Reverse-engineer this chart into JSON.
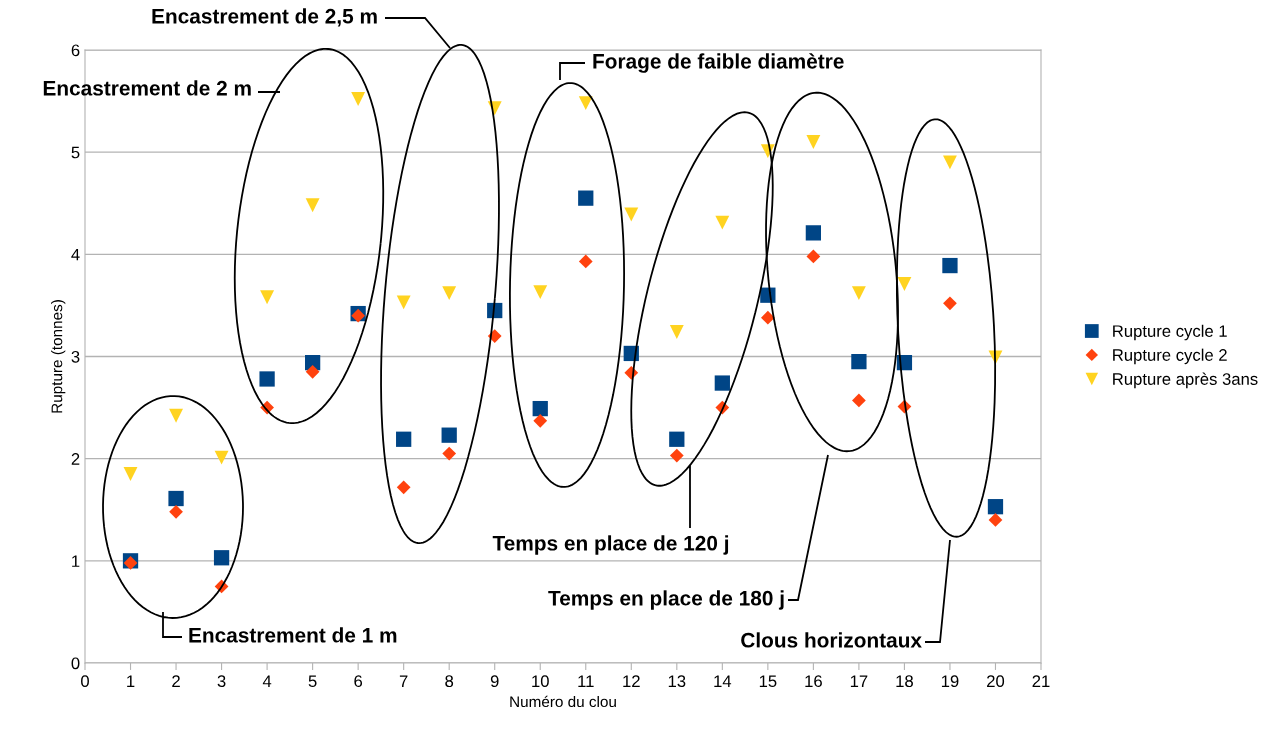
{
  "chart_data": {
    "type": "scatter",
    "xlabel": "Numéro du clou",
    "ylabel": "Rupture (tonnes)",
    "x": [
      1,
      2,
      3,
      4,
      5,
      6,
      7,
      8,
      9,
      10,
      11,
      12,
      13,
      14,
      15,
      16,
      17,
      18,
      19,
      20
    ],
    "series": [
      {
        "name": "Rupture cycle 1",
        "color": "#004586",
        "marker": "square",
        "values": [
          1.0,
          1.61,
          1.03,
          2.78,
          2.94,
          3.42,
          2.19,
          2.23,
          3.45,
          2.49,
          4.55,
          3.03,
          2.19,
          2.74,
          3.6,
          4.21,
          2.95,
          2.94,
          3.89,
          1.53
        ]
      },
      {
        "name": "Rupture cycle 2",
        "color": "#ff420e",
        "marker": "diamond",
        "values": [
          0.98,
          1.48,
          0.75,
          2.5,
          2.85,
          3.4,
          1.72,
          2.05,
          3.2,
          2.37,
          3.93,
          2.84,
          2.03,
          2.5,
          3.38,
          3.98,
          2.57,
          2.51,
          3.52,
          1.4
        ]
      },
      {
        "name": "Rupture après 3ans",
        "color": "#ffd320",
        "marker": "triangle",
        "values": [
          1.85,
          2.42,
          2.01,
          3.58,
          4.48,
          5.52,
          3.53,
          3.62,
          5.43,
          3.63,
          5.48,
          4.39,
          3.24,
          4.31,
          5.01,
          5.1,
          3.62,
          3.71,
          4.9,
          2.99
        ]
      }
    ],
    "xlim": [
      0,
      21
    ],
    "xticks": [
      0,
      1,
      2,
      3,
      4,
      5,
      6,
      7,
      8,
      9,
      10,
      11,
      12,
      13,
      14,
      15,
      16,
      17,
      18,
      19,
      20,
      21
    ],
    "ylim": [
      0,
      6
    ],
    "yticks": [
      0,
      1,
      2,
      3,
      4,
      5,
      6
    ],
    "grid": "y",
    "legend": "right",
    "annotations": [
      "Encastrement de 1 m",
      "Encastrement de 2 m",
      "Encastrement de 2,5 m",
      "Forage de faible diamètre",
      "Temps en place de 120 j",
      "Temps en place de 180 j",
      "Clous horizontaux"
    ]
  }
}
